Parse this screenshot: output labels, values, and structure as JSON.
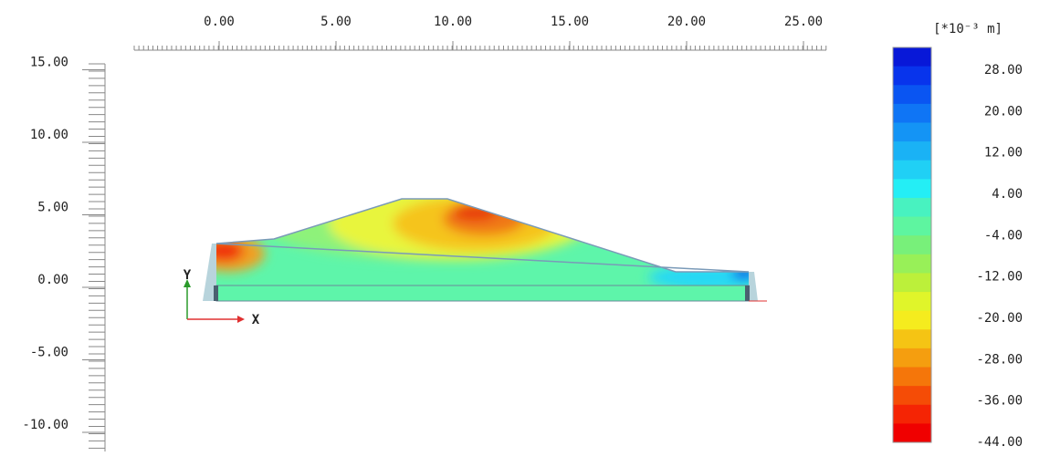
{
  "x_ruler": {
    "ticks": [
      {
        "value": 0,
        "label": "0.00"
      },
      {
        "value": 5,
        "label": "5.00"
      },
      {
        "value": 10,
        "label": "10.00"
      },
      {
        "value": 15,
        "label": "15.00"
      },
      {
        "value": 20,
        "label": "20.00"
      },
      {
        "value": 25,
        "label": "25.00"
      }
    ]
  },
  "y_ruler": {
    "ticks": [
      {
        "value": 15,
        "label": "15.00"
      },
      {
        "value": 10,
        "label": "10.00"
      },
      {
        "value": 5,
        "label": "5.00"
      },
      {
        "value": 0,
        "label": "0.00"
      },
      {
        "value": -5,
        "label": "-5.00"
      },
      {
        "value": -10,
        "label": "-10.00"
      }
    ]
  },
  "legend": {
    "unit": "[*10⁻³ m]",
    "labels": [
      "28.00",
      "20.00",
      "12.00",
      "4.00",
      "-4.00",
      "-12.00",
      "-20.00",
      "-28.00",
      "-36.00",
      "-44.00"
    ]
  },
  "axes": {
    "y": "Y",
    "x": "X"
  }
}
